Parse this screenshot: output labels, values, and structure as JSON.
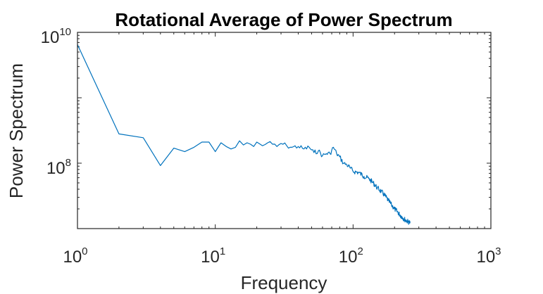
{
  "chart_data": {
    "type": "line",
    "title": "Rotational Average of Power Spectrum",
    "xlabel": "Frequency",
    "ylabel": "Power Spectrum",
    "xscale": "log",
    "yscale": "log",
    "xlim": [
      1,
      1000
    ],
    "ylim": [
      10000000,
      10000000000
    ],
    "xticks": [
      {
        "base": "10",
        "exp": "0"
      },
      {
        "base": "10",
        "exp": "1"
      },
      {
        "base": "10",
        "exp": "2"
      },
      {
        "base": "10",
        "exp": "3"
      }
    ],
    "yticks": [
      {
        "base": "10",
        "exp": "8"
      },
      {
        "base": "10",
        "exp": "10"
      }
    ],
    "grid": false,
    "box": true,
    "series": [
      {
        "color": "#0072bd",
        "x": [
          1,
          2,
          3,
          4,
          5,
          6,
          7,
          8,
          9,
          10,
          11,
          12,
          13,
          14,
          15,
          16,
          17,
          18,
          19,
          20,
          22,
          24,
          26,
          28,
          30,
          33,
          36,
          40,
          44,
          48,
          52,
          56,
          60,
          64,
          68,
          72,
          76,
          80,
          85,
          90,
          95,
          100,
          110,
          120,
          130,
          140,
          150,
          160,
          170,
          180,
          190,
          200,
          210,
          220,
          230,
          240,
          250,
          260
        ],
        "y": [
          6500000000,
          280000000,
          245000000,
          92000000,
          170000000,
          150000000,
          175000000,
          210000000,
          210000000,
          150000000,
          205000000,
          180000000,
          165000000,
          175000000,
          220000000,
          190000000,
          205000000,
          195000000,
          180000000,
          210000000,
          185000000,
          205000000,
          195000000,
          180000000,
          200000000,
          185000000,
          175000000,
          180000000,
          165000000,
          175000000,
          145000000,
          155000000,
          130000000,
          140000000,
          140000000,
          175000000,
          140000000,
          125000000,
          100000000,
          95000000,
          85000000,
          75000000,
          72000000,
          63000000,
          58000000,
          50000000,
          42000000,
          37000000,
          32000000,
          27000000,
          23000000,
          20000000,
          18000000,
          16000000,
          14500000,
          13500000,
          12800000,
          12200000
        ]
      }
    ]
  }
}
